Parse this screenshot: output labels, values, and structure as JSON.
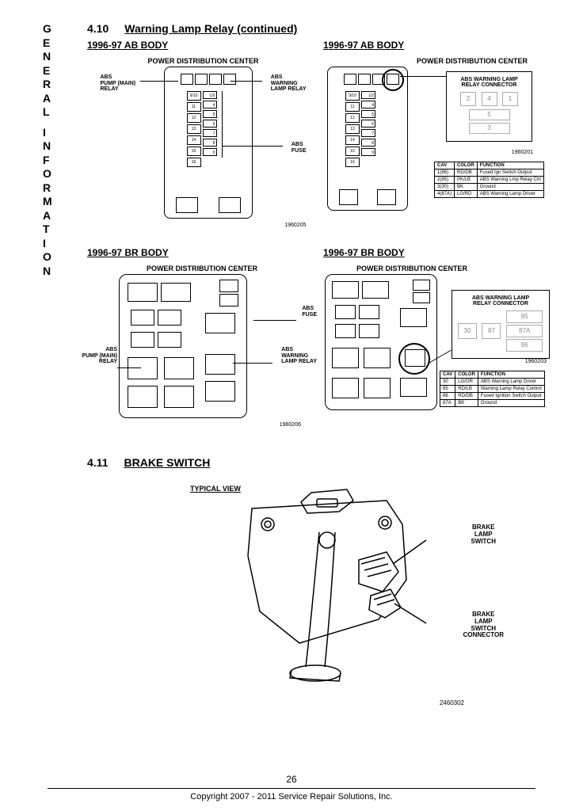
{
  "sidebar_text": "GENERAL INFORMATION",
  "section_410_num": "4.10",
  "section_410_title": "Warning Lamp Relay (continued)",
  "section_411_num": "4.11",
  "section_411_title": "BRAKE SWITCH",
  "ab_body_heading": "1996-97 AB BODY",
  "br_body_heading": "1996-97 BR BODY",
  "pdc_label": "POWER DISTRIBUTION CENTER",
  "callouts": {
    "abs_pump_relay": "ABS\nPUMP (MAIN)\nRELAY",
    "abs_warning_relay": "ABS\nWARNING\nLAMP RELAY",
    "abs_fuse": "ABS\nFUSE",
    "relay_connector_title": "ABS WARNING LAMP\nRELAY CONNECTOR",
    "typical_view": "TYPICAL VIEW",
    "brake_lamp_switch": "BRAKE\nLAMP\nSWITCH",
    "brake_lamp_switch_conn": "BRAKE\nLAMP\nSWITCH\nCONNECTOR"
  },
  "ab_fuse_numbers": [
    "9/10",
    "1/2",
    "11",
    "4",
    "12",
    "5",
    "13",
    "6",
    "14",
    "7",
    "15",
    "8",
    "16",
    "9"
  ],
  "fig_numbers": {
    "ab_left": "1960205",
    "ab_right": "1960201",
    "br_left": "1960206",
    "br_right": "1960203",
    "brake": "2460302"
  },
  "ab_connector_pins_top": [
    "2",
    "4",
    "1"
  ],
  "ab_connector_pins_bottom": [
    "5",
    "3"
  ],
  "br_connector_pins_left": [
    "30",
    "87"
  ],
  "br_connector_pins_right": [
    "85",
    "87A",
    "86"
  ],
  "cav_headers": [
    "CAV",
    "COLOR",
    "FUNCTION"
  ],
  "ab_cav_rows": [
    [
      "1(86)",
      "RD/DB",
      "Fused Ign Switch Output"
    ],
    [
      "2(85)",
      "PK/LB",
      "ABS Warning Lmp Relay Ctrl"
    ],
    [
      "3(30)",
      "BK",
      "Ground"
    ],
    [
      "4(87A)",
      "LG/RD",
      "ABS Warning Lamp Driver"
    ]
  ],
  "br_cav_rows": [
    [
      "30",
      "LG/OR",
      "ABS Warning Lamp Driver"
    ],
    [
      "85",
      "RD/LB",
      "Warning Lamp Relay Control"
    ],
    [
      "86",
      "RD/DB",
      "Fused Ignition Switch Output"
    ],
    [
      "87A",
      "BK",
      "Ground"
    ]
  ],
  "page_number": "26",
  "copyright": "Copyright 2007 - 2011 Service Repair Solutions, Inc."
}
